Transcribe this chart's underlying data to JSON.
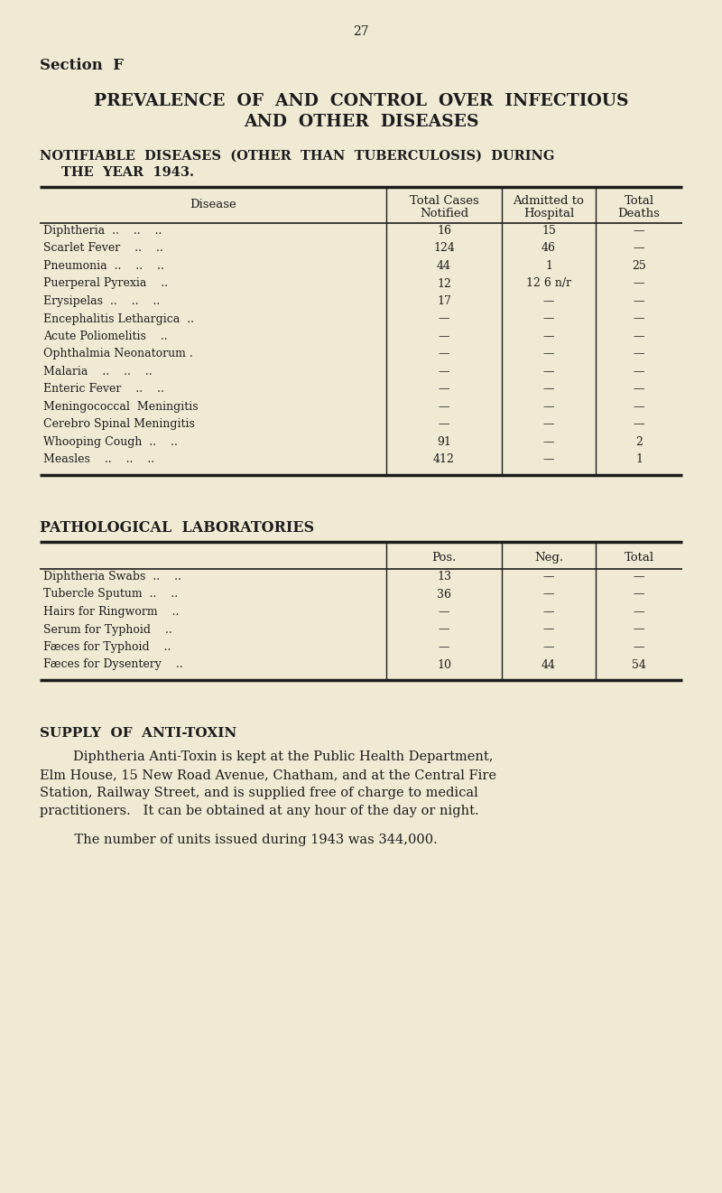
{
  "bg_color": "#f0ead5",
  "text_color": "#1c1c1c",
  "page_number": "27",
  "section_label": "Section  F",
  "main_title_line1": "PREVALENCE  OF  AND  CONTROL  OVER  INFECTIOUS",
  "main_title_line2": "AND  OTHER  DISEASES",
  "subtitle_line1": "NOTIFIABLE  DISEASES  (OTHER  THAN  TUBERCULOSIS)  DURING",
  "subtitle_line2": "THE  YEAR  1943.",
  "table1_col_header": "Disease",
  "table1_headers": [
    "Total Cases\nNotified",
    "Admitted to\nHospital",
    "Total\nDeaths"
  ],
  "table1_rows": [
    [
      "Diphtheria  ..    ..    ..",
      "16",
      "15",
      "—"
    ],
    [
      "Scarlet Fever    ..    ..",
      "124",
      "46",
      "—"
    ],
    [
      "Pneumonia  ..    ..    ..",
      "44",
      "1",
      "25"
    ],
    [
      "Puerperal Pyrexia    ..",
      "12",
      "12 6 n/r",
      "—"
    ],
    [
      "Erysipelas  ..    ..    ..",
      "17",
      "—",
      "—"
    ],
    [
      "Encephalitis Lethargica  ..",
      "—",
      "—",
      "—"
    ],
    [
      "Acute Poliomelitis    ..",
      "—",
      "—",
      "—"
    ],
    [
      "Ophthalmia Neonatorum .",
      "—",
      "—",
      "—"
    ],
    [
      "Malaria    ..    ..    ..",
      "—",
      "—",
      "—"
    ],
    [
      "Enteric Fever    ..    ..",
      "—",
      "—",
      "—"
    ],
    [
      "Meningococcal  Meningitis",
      "—",
      "—",
      "—"
    ],
    [
      "Cerebro Spinal Meningitis",
      "—",
      "—",
      "—"
    ],
    [
      "Whooping Cough  ..    ..",
      "91",
      "—",
      "2"
    ],
    [
      "Measles    ..    ..    ..",
      "412",
      "—",
      "1"
    ]
  ],
  "path_label": "PATHOLOGICAL  LABORATORIES",
  "table2_headers": [
    "Pos.",
    "Neg.",
    "Total"
  ],
  "table2_rows": [
    [
      "Diphtheria Swabs  ..    ..",
      "13",
      "—",
      "—"
    ],
    [
      "Tubercle Sputum  ..    ..",
      "36",
      "—",
      "—"
    ],
    [
      "Hairs for Ringworm    ..",
      "—",
      "—",
      "—"
    ],
    [
      "Serum for Typhoid    ..",
      "—",
      "—",
      "—"
    ],
    [
      "Fæces for Typhoid    ..",
      "—",
      "—",
      "—"
    ],
    [
      "Fæces for Dysentery    ..",
      "10",
      "44",
      "54"
    ]
  ],
  "supply_heading": "SUPPLY  OF  ANTI-TOXIN",
  "supply_lines": [
    "        Diphtheria Anti-Toxin is kept at the Public Health Department,",
    "Elm House, 15 New Road Avenue, Chatham, and at the Central Fire",
    "Station, Railway Street, and is supplied free of charge to medical",
    "practitioners.   It can be obtained at any hour of the day or night."
  ],
  "supply_line2": "    The number of units issued during 1943 was 344,000."
}
